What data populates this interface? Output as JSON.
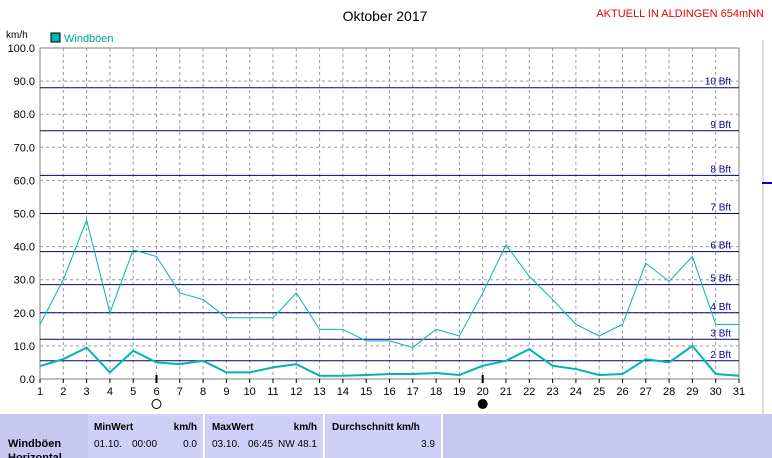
{
  "header": {
    "title": "Oktober 2017",
    "station": "AKTUELL IN ALDINGEN 654mNN"
  },
  "colors": {
    "series": "#00b4b4",
    "bft_lines": "#000080",
    "grid": "#999999",
    "panel": "#cfcff8"
  },
  "chart_data": {
    "type": "line",
    "title": "Oktober 2017",
    "ylabel": "km/h",
    "ylim": [
      0,
      100
    ],
    "yticks": [
      "0.0",
      "10.0",
      "20.0",
      "30.0",
      "40.0",
      "50.0",
      "60.0",
      "70.0",
      "80.0",
      "90.0",
      "100.0"
    ],
    "x": [
      1,
      2,
      3,
      4,
      5,
      6,
      7,
      8,
      9,
      10,
      11,
      12,
      13,
      14,
      15,
      16,
      17,
      18,
      19,
      20,
      21,
      22,
      23,
      24,
      25,
      26,
      27,
      28,
      29,
      30,
      31
    ],
    "legend": [
      "Windböen"
    ],
    "series": [
      {
        "name": "Windböen",
        "values": [
          16.5,
          30,
          48,
          20,
          39,
          37,
          26,
          24,
          18.5,
          18.5,
          18.5,
          26,
          15,
          15,
          11.5,
          11.5,
          9.5,
          15,
          13,
          26,
          40.5,
          31,
          24,
          16.5,
          13,
          16.5,
          35,
          29.5,
          37,
          16.5,
          16.5
        ]
      },
      {
        "values": [
          3.9,
          6,
          9.5,
          2,
          8.5,
          5,
          4.5,
          5.5,
          2,
          2,
          3.5,
          4.5,
          1,
          1,
          1.2,
          1.5,
          1.5,
          1.8,
          1.2,
          4,
          5.5,
          9,
          4,
          3,
          1.2,
          1.5,
          6,
          5,
          10,
          1.5,
          1
        ]
      }
    ],
    "beaufort": [
      {
        "label": "2 Bft",
        "value": 5.5
      },
      {
        "label": "3 Bft",
        "value": 12
      },
      {
        "label": "4 Bft",
        "value": 20
      },
      {
        "label": "5 Bft",
        "value": 28.5
      },
      {
        "label": "6 Bft",
        "value": 38.5
      },
      {
        "label": "7 Bft",
        "value": 50
      },
      {
        "label": "8 Bft",
        "value": 61.5
      },
      {
        "label": "9 Bft",
        "value": 75
      },
      {
        "label": "10 Bft",
        "value": 88
      }
    ],
    "moon_markers": [
      {
        "day": 6,
        "phase": "full"
      },
      {
        "day": 20,
        "phase": "new"
      }
    ]
  },
  "stats": {
    "row_label": "Windböen",
    "row_label2": "Horizontal",
    "min": {
      "header": "MinWert",
      "unit": "km/h",
      "date": "01.10.",
      "time": "00:00",
      "value": "0.0"
    },
    "max": {
      "header": "MaxWert",
      "unit": "km/h",
      "date": "03.10.",
      "time": "06:45",
      "dir": "NW",
      "value": "48.1"
    },
    "avg": {
      "header": "Durchschnitt km/h",
      "value": "3.9"
    }
  }
}
